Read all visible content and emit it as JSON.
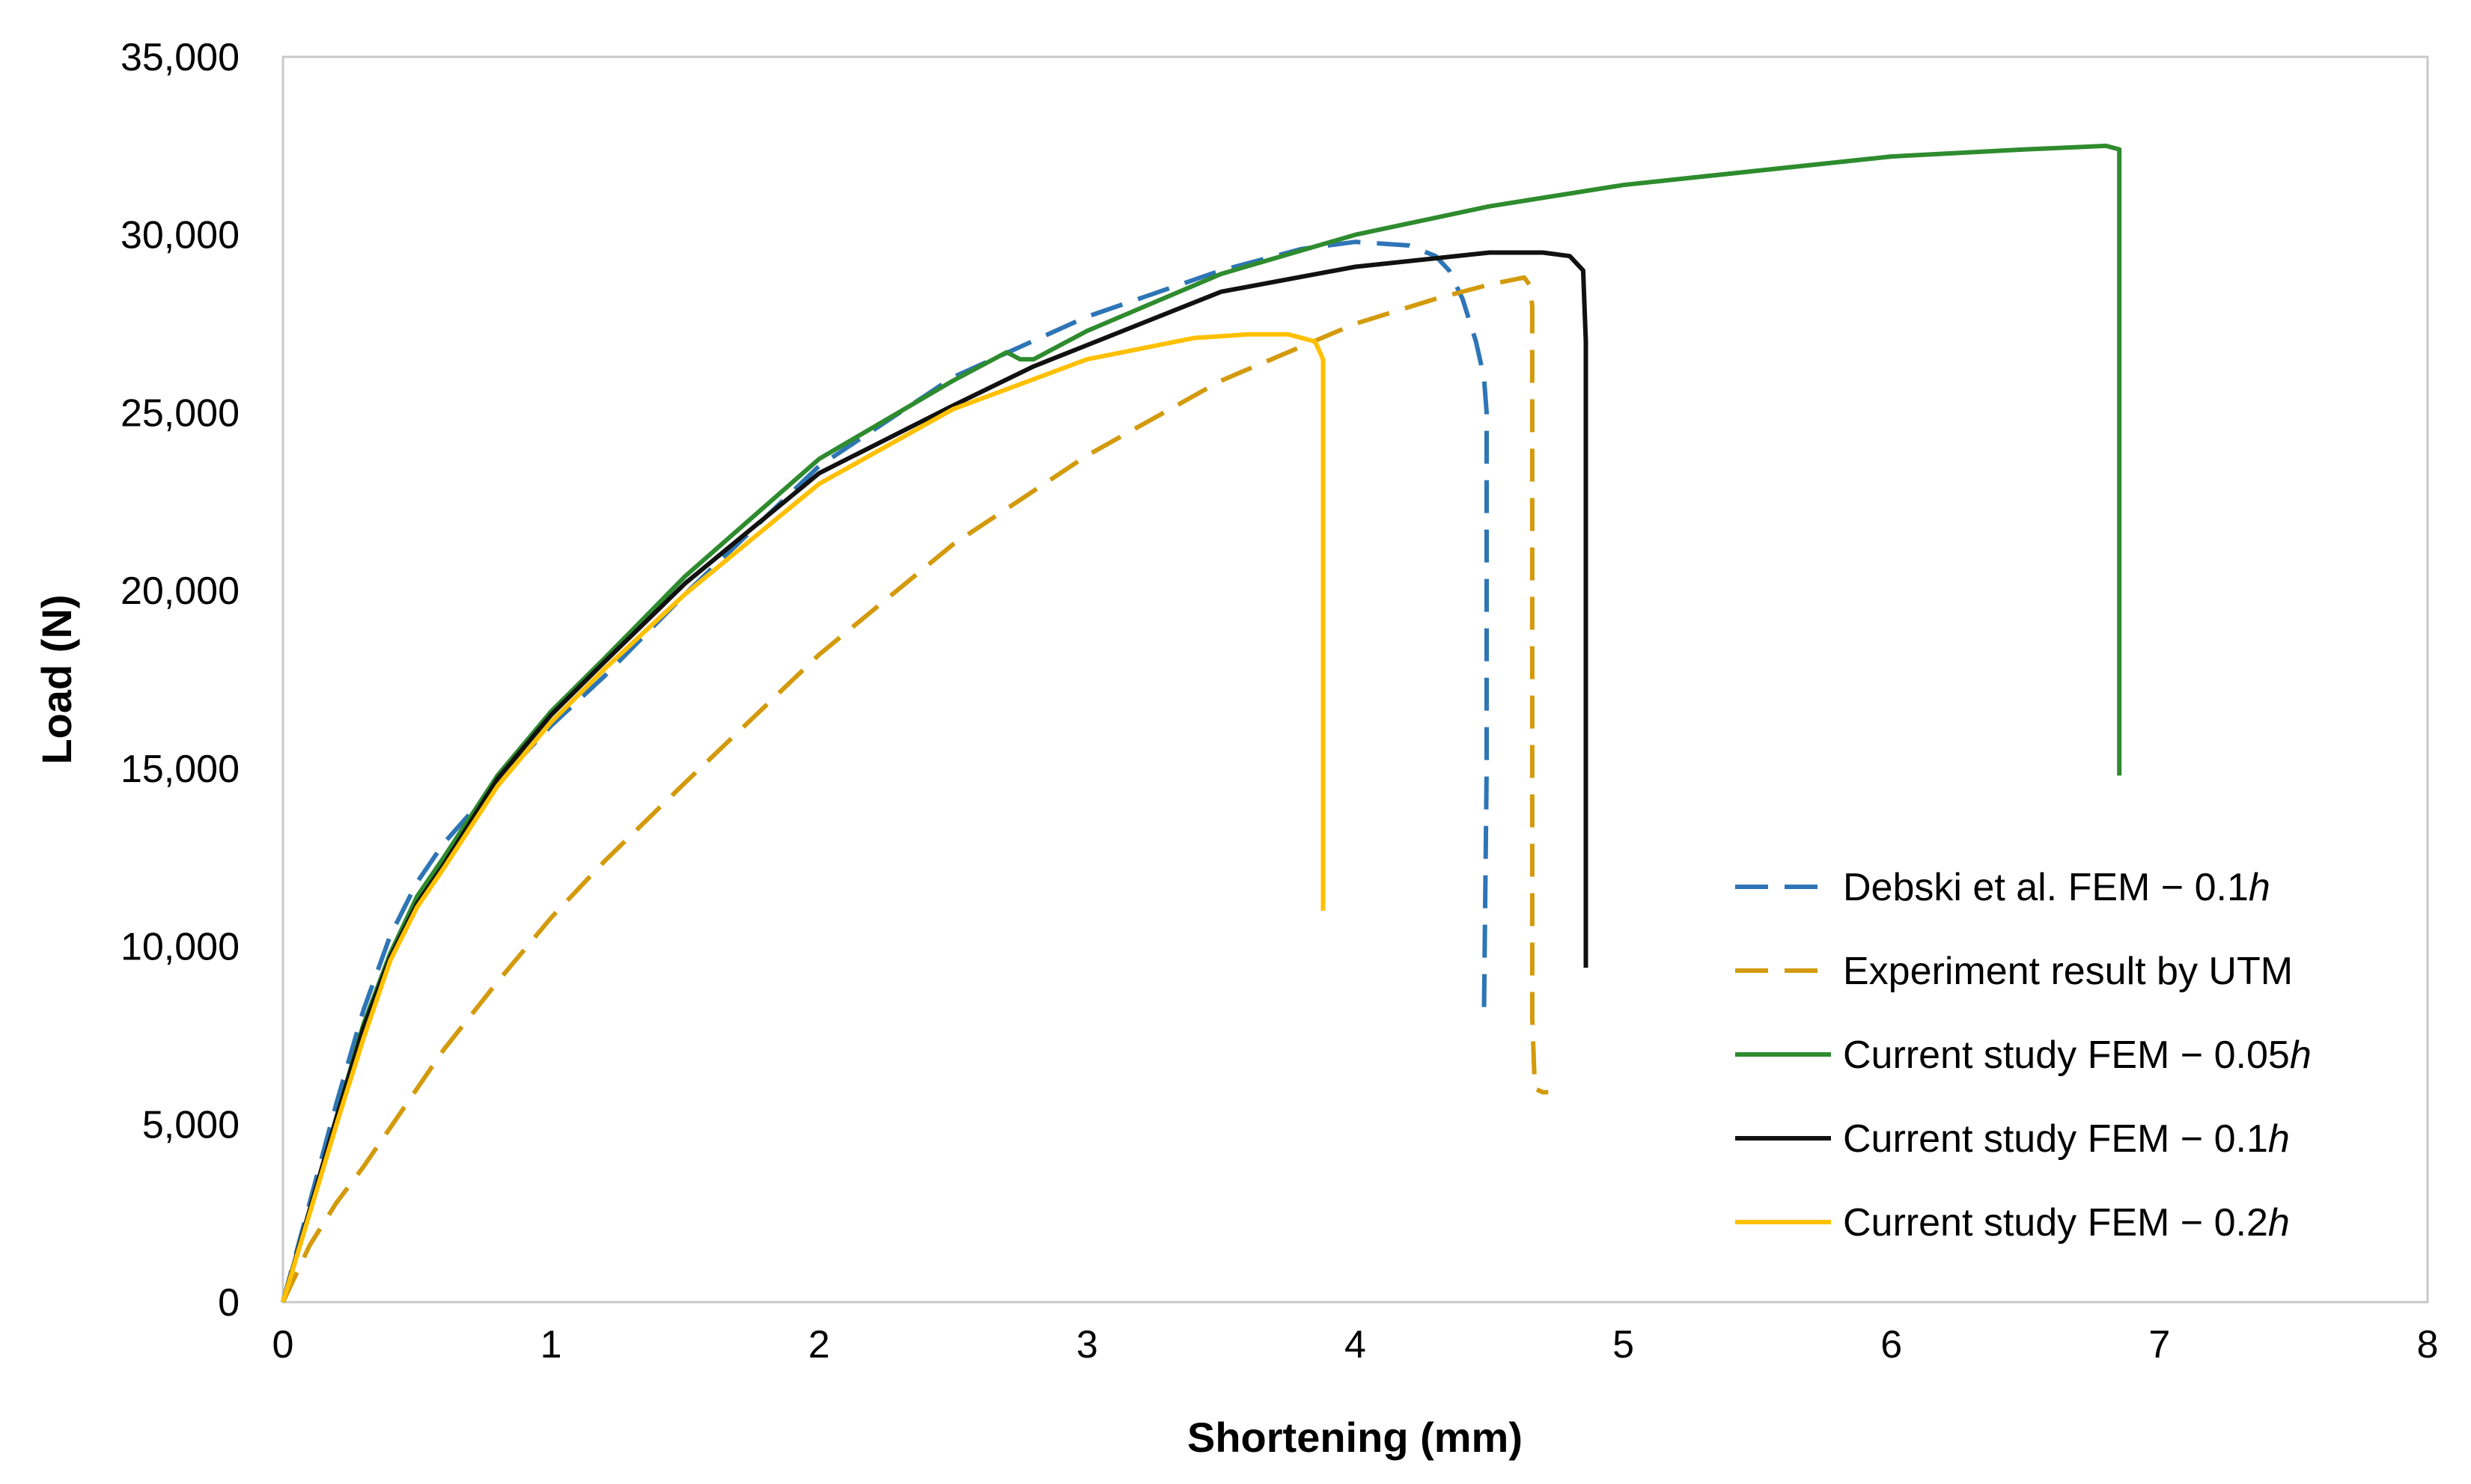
{
  "chart_data": {
    "type": "line",
    "title": "",
    "xlabel": "Shortening (mm)",
    "ylabel": "Load (N)",
    "xlim": [
      0,
      8
    ],
    "ylim": [
      0,
      35000
    ],
    "grid": false,
    "legend_position": "bottom-right",
    "x_ticks": [
      0,
      1,
      2,
      3,
      4,
      5,
      6,
      7,
      8
    ],
    "x_tick_labels": [
      "0",
      "1",
      "2",
      "3",
      "4",
      "5",
      "6",
      "7",
      "8"
    ],
    "y_ticks": [
      0,
      5000,
      10000,
      15000,
      20000,
      25000,
      30000,
      35000
    ],
    "y_tick_labels": [
      "0",
      "5,000",
      "10,000",
      "15,000",
      "20,000",
      "25,000",
      "30,000",
      "35,000"
    ],
    "series": [
      {
        "name": "Debski et al. FEM − 0.1",
        "name_italic": "h",
        "color": "#2E75B6",
        "dash": "dashed",
        "x": [
          0,
          0.1,
          0.2,
          0.3,
          0.4,
          0.5,
          0.6,
          0.8,
          1.0,
          1.2,
          1.5,
          2.0,
          2.5,
          3.0,
          3.5,
          3.8,
          4.0,
          4.2,
          4.3,
          4.35,
          4.4,
          4.45,
          4.48,
          4.49,
          4.49,
          4.48
        ],
        "y": [
          0,
          2800,
          5600,
          8200,
          10300,
          11800,
          12900,
          14600,
          16200,
          17600,
          19900,
          23500,
          26000,
          27700,
          29000,
          29600,
          29800,
          29700,
          29400,
          29000,
          28200,
          27000,
          26000,
          25000,
          15000,
          8000
        ]
      },
      {
        "name": "Experiment result by UTM",
        "name_italic": "",
        "color": "#D39A0B",
        "dash": "dashed",
        "x": [
          0,
          0.05,
          0.1,
          0.2,
          0.3,
          0.4,
          0.5,
          0.6,
          0.8,
          1.0,
          1.2,
          1.5,
          2.0,
          2.5,
          3.0,
          3.5,
          4.0,
          4.3,
          4.5,
          4.63,
          4.65,
          4.66,
          4.66,
          4.66,
          4.67,
          4.7,
          4.72
        ],
        "y": [
          0,
          800,
          1600,
          2800,
          3800,
          4900,
          6000,
          7100,
          9000,
          10800,
          12400,
          14600,
          18200,
          21300,
          23800,
          25900,
          27500,
          28200,
          28600,
          28800,
          28600,
          28000,
          20000,
          8000,
          6000,
          5900,
          5900
        ]
      },
      {
        "name": "Current study FEM − 0.05",
        "name_italic": "h",
        "color": "#2E8B2E",
        "dash": "solid",
        "x": [
          0,
          0.1,
          0.2,
          0.3,
          0.4,
          0.5,
          0.6,
          0.8,
          1.0,
          1.2,
          1.5,
          2.0,
          2.5,
          2.7,
          2.75,
          2.8,
          3.0,
          3.5,
          4.0,
          4.5,
          5.0,
          5.5,
          6.0,
          6.5,
          6.8,
          6.85,
          6.85,
          6.85
        ],
        "y": [
          0,
          2600,
          5200,
          7800,
          9800,
          11400,
          12500,
          14800,
          16600,
          18100,
          20400,
          23700,
          25900,
          26700,
          26500,
          26500,
          27300,
          28900,
          30000,
          30800,
          31400,
          31800,
          32200,
          32400,
          32500,
          32400,
          25000,
          14800
        ]
      },
      {
        "name": "Current study FEM − 0.1",
        "name_italic": "h",
        "color": "#111111",
        "dash": "solid",
        "x": [
          0,
          0.1,
          0.2,
          0.3,
          0.4,
          0.5,
          0.6,
          0.8,
          1.0,
          1.2,
          1.5,
          2.0,
          2.5,
          2.8,
          3.0,
          3.5,
          4.0,
          4.5,
          4.7,
          4.8,
          4.85,
          4.86,
          4.86,
          4.86
        ],
        "y": [
          0,
          2600,
          5200,
          7700,
          9700,
          11200,
          12300,
          14700,
          16500,
          18000,
          20200,
          23300,
          25200,
          26300,
          26900,
          28400,
          29100,
          29500,
          29500,
          29400,
          29000,
          27000,
          15000,
          9400
        ]
      },
      {
        "name": "Current study FEM − 0.2",
        "name_italic": "h",
        "color": "#FFC000",
        "dash": "solid",
        "x": [
          0,
          0.1,
          0.2,
          0.3,
          0.4,
          0.5,
          0.6,
          0.8,
          1.0,
          1.2,
          1.5,
          2.0,
          2.5,
          3.0,
          3.4,
          3.6,
          3.75,
          3.85,
          3.88,
          3.88,
          3.88
        ],
        "y": [
          0,
          2500,
          5000,
          7400,
          9600,
          11100,
          12200,
          14500,
          16300,
          17800,
          19900,
          23000,
          25100,
          26500,
          27100,
          27200,
          27200,
          27000,
          26500,
          18000,
          11000
        ]
      }
    ]
  }
}
